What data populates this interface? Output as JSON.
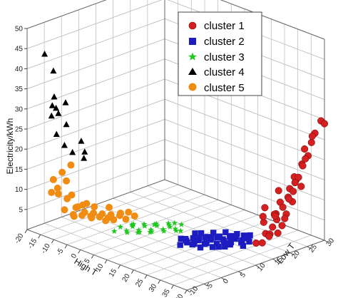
{
  "chart_data": {
    "type": "scatter",
    "dimensions": 3,
    "axes": {
      "x": {
        "label": "High T",
        "range": [
          -20,
          40
        ],
        "ticks": [
          "-20",
          "-15",
          "-10",
          "-5",
          "0",
          "5",
          "10",
          "15",
          "20",
          "25",
          "30",
          "35",
          "40"
        ]
      },
      "y": {
        "label": "Low T",
        "range": [
          -10,
          30
        ],
        "ticks": [
          "-10",
          "-5",
          "0",
          "5",
          "10",
          "15",
          "20",
          "25",
          "30"
        ]
      },
      "z": {
        "label": "Electricity/kWh",
        "range": [
          0,
          50
        ],
        "ticks": [
          "5",
          "10",
          "15",
          "20",
          "25",
          "30",
          "35",
          "40",
          "45",
          "50"
        ]
      }
    },
    "grid": true,
    "legend_position": "top-right",
    "series": [
      {
        "name": "cluster 1",
        "marker": "sphere",
        "color": "#d42020",
        "points": [
          [
            35,
            14,
            3
          ],
          [
            36,
            16,
            5
          ],
          [
            34,
            17,
            7
          ],
          [
            35,
            18,
            4
          ],
          [
            36,
            19,
            9
          ],
          [
            37,
            20,
            6
          ],
          [
            35,
            21,
            11
          ],
          [
            36,
            22,
            8
          ],
          [
            37,
            15,
            12
          ],
          [
            38,
            17,
            10
          ],
          [
            36,
            23,
            14
          ],
          [
            37,
            24,
            16
          ],
          [
            38,
            21,
            13
          ],
          [
            39,
            22,
            18
          ],
          [
            38,
            25,
            20
          ],
          [
            39,
            26,
            22
          ],
          [
            37,
            19,
            15
          ],
          [
            36,
            18,
            6
          ],
          [
            35,
            16,
            9
          ],
          [
            37,
            23,
            11
          ],
          [
            38,
            24,
            17
          ],
          [
            39,
            27,
            25
          ],
          [
            38,
            20,
            8
          ],
          [
            36,
            24,
            13
          ],
          [
            37,
            26,
            19
          ],
          [
            39,
            24,
            15
          ],
          [
            38,
            18,
            5
          ],
          [
            36,
            21,
            10
          ],
          [
            35,
            20,
            7
          ],
          [
            37,
            22,
            12
          ],
          [
            38,
            26,
            21
          ],
          [
            39,
            28,
            27
          ],
          [
            36,
            17,
            4
          ],
          [
            37,
            18,
            9
          ],
          [
            38,
            23,
            16
          ],
          [
            39,
            25,
            24
          ],
          [
            40,
            29,
            30
          ],
          [
            40,
            30,
            29
          ],
          [
            38,
            28,
            26
          ],
          [
            36,
            15,
            3
          ]
        ]
      },
      {
        "name": "cluster 2",
        "marker": "square",
        "color": "#1c1cc0",
        "points": [
          [
            22,
            2,
            3
          ],
          [
            23,
            3,
            4
          ],
          [
            24,
            4,
            3
          ],
          [
            25,
            5,
            4
          ],
          [
            26,
            6,
            3
          ],
          [
            27,
            7,
            4
          ],
          [
            28,
            8,
            3
          ],
          [
            29,
            9,
            4
          ],
          [
            30,
            10,
            3
          ],
          [
            31,
            11,
            4
          ],
          [
            32,
            12,
            3
          ],
          [
            33,
            13,
            4
          ],
          [
            24,
            2,
            5
          ],
          [
            26,
            3,
            4
          ],
          [
            28,
            5,
            4
          ],
          [
            30,
            7,
            3
          ],
          [
            32,
            9,
            4
          ],
          [
            34,
            11,
            3
          ],
          [
            25,
            4,
            6
          ],
          [
            27,
            6,
            5
          ],
          [
            29,
            8,
            5
          ],
          [
            31,
            10,
            5
          ],
          [
            33,
            12,
            5
          ],
          [
            23,
            5,
            4
          ],
          [
            25,
            7,
            4
          ],
          [
            27,
            9,
            4
          ],
          [
            29,
            11,
            4
          ],
          [
            31,
            13,
            3
          ],
          [
            22,
            4,
            3
          ],
          [
            24,
            6,
            4
          ],
          [
            26,
            8,
            4
          ],
          [
            28,
            10,
            3
          ],
          [
            30,
            12,
            4
          ],
          [
            32,
            14,
            4
          ],
          [
            34,
            13,
            5
          ],
          [
            33,
            10,
            6
          ],
          [
            21,
            3,
            4
          ],
          [
            26,
            5,
            6
          ],
          [
            28,
            7,
            6
          ],
          [
            30,
            9,
            6
          ],
          [
            35,
            12,
            4
          ],
          [
            27,
            4,
            3
          ],
          [
            29,
            6,
            3
          ],
          [
            31,
            8,
            3
          ],
          [
            33,
            8,
            4
          ]
        ]
      },
      {
        "name": "cluster 3",
        "marker": "star",
        "color": "#1ec81e",
        "points": [
          [
            5,
            -4,
            4
          ],
          [
            6,
            -3,
            5
          ],
          [
            7,
            -2,
            4
          ],
          [
            8,
            -1,
            5
          ],
          [
            9,
            0,
            4
          ],
          [
            10,
            1,
            5
          ],
          [
            11,
            2,
            4
          ],
          [
            12,
            3,
            5
          ],
          [
            13,
            4,
            4
          ],
          [
            14,
            5,
            5
          ],
          [
            15,
            6,
            4
          ],
          [
            16,
            5,
            6
          ],
          [
            6,
            -1,
            3
          ],
          [
            8,
            1,
            3
          ],
          [
            10,
            3,
            3
          ],
          [
            12,
            5,
            3
          ],
          [
            14,
            7,
            3
          ],
          [
            9,
            -2,
            6
          ],
          [
            11,
            0,
            6
          ],
          [
            13,
            2,
            6
          ],
          [
            15,
            4,
            6
          ],
          [
            7,
            0,
            5
          ],
          [
            11,
            3,
            5
          ],
          [
            13,
            6,
            4
          ],
          [
            16,
            7,
            5
          ],
          [
            17,
            6,
            4
          ],
          [
            10,
            -1,
            4
          ],
          [
            12,
            1,
            4
          ]
        ]
      },
      {
        "name": "cluster 4",
        "marker": "triangle",
        "color": "#000000",
        "points": [
          [
            -16,
            -8,
            44
          ],
          [
            -14,
            -7,
            40
          ],
          [
            -15,
            -6,
            33
          ],
          [
            -12,
            -5,
            32
          ],
          [
            -17,
            -5,
            30
          ],
          [
            -16,
            -4,
            28
          ],
          [
            -13,
            -4,
            26
          ],
          [
            -18,
            -3,
            22
          ],
          [
            -15,
            -3,
            20
          ],
          [
            -12,
            -3,
            19
          ],
          [
            -10,
            -2,
            22
          ],
          [
            -10,
            -1,
            19
          ],
          [
            -16,
            -6,
            28
          ],
          [
            -13,
            -7,
            31
          ],
          [
            -9,
            -2,
            18
          ]
        ]
      },
      {
        "name": "cluster 5",
        "marker": "circle",
        "color": "#f08c12",
        "points": [
          [
            -14,
            -7,
            13
          ],
          [
            -12,
            -6,
            15
          ],
          [
            -10,
            -5,
            17
          ],
          [
            -15,
            -5,
            10
          ],
          [
            -13,
            -4,
            12
          ],
          [
            -16,
            -4,
            8
          ],
          [
            -14,
            -3,
            7
          ],
          [
            -12,
            -2,
            5
          ],
          [
            -10,
            -1,
            4
          ],
          [
            -8,
            0,
            4
          ],
          [
            -6,
            1,
            4
          ],
          [
            -4,
            2,
            4
          ],
          [
            -2,
            3,
            4
          ],
          [
            0,
            4,
            5
          ],
          [
            -13,
            -2,
            3
          ],
          [
            -11,
            -1,
            3
          ],
          [
            -9,
            0,
            3
          ],
          [
            -7,
            1,
            3
          ],
          [
            -5,
            2,
            3
          ],
          [
            -15,
            -3,
            4
          ],
          [
            -12,
            0,
            5
          ],
          [
            -9,
            1,
            5
          ],
          [
            -6,
            3,
            5
          ],
          [
            -3,
            4,
            4
          ],
          [
            -10,
            -3,
            6
          ],
          [
            -8,
            -2,
            7
          ],
          [
            -11,
            -4,
            9
          ],
          [
            -14,
            -1,
            2
          ],
          [
            -10,
            1,
            2
          ],
          [
            -6,
            2,
            2
          ],
          [
            -3,
            2,
            3
          ],
          [
            -1,
            4,
            3
          ],
          [
            1,
            5,
            4
          ],
          [
            -16,
            -6,
            9
          ]
        ]
      }
    ]
  }
}
